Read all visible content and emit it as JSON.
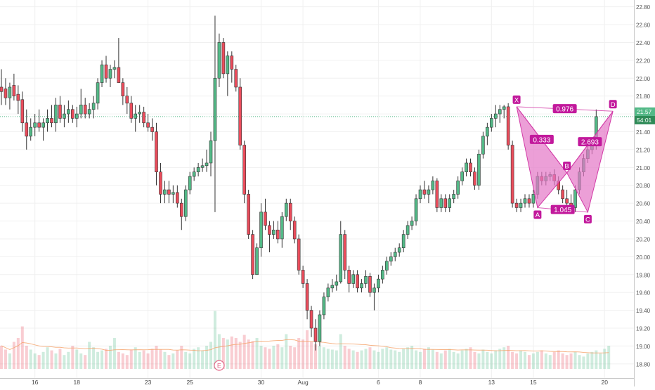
{
  "chart_data": {
    "type": "candlestick",
    "y_axis": {
      "position": "right",
      "min": 18.72,
      "max": 22.86,
      "tick_labels": [
        "22.80",
        "22.60",
        "22.40",
        "22.20",
        "22.00",
        "21.80",
        "21.60",
        "21.40",
        "21.20",
        "21.00",
        "20.80",
        "20.60",
        "20.40",
        "20.20",
        "20.00",
        "19.80",
        "19.60",
        "19.40",
        "19.20",
        "19.00",
        "18.80"
      ]
    },
    "x_axis": {
      "labels": [
        {
          "text": "16",
          "bar": 8
        },
        {
          "text": "18",
          "bar": 18
        },
        {
          "text": "23",
          "bar": 35
        },
        {
          "text": "25",
          "bar": 45
        },
        {
          "text": "30",
          "bar": 62
        },
        {
          "text": "Aug",
          "bar": 72
        },
        {
          "text": "6",
          "bar": 90
        },
        {
          "text": "8",
          "bar": 100
        },
        {
          "text": "13",
          "bar": 117
        },
        {
          "text": "15",
          "bar": 127
        },
        {
          "text": "20",
          "bar": 144
        }
      ]
    },
    "grid": true,
    "colors": {
      "up": "#53b987",
      "down": "#eb4d5c",
      "pattern_fill": "#e476c6",
      "pattern_stroke": "#d23aa6",
      "label_bg": "#c2199c",
      "price_line": "#53b987",
      "volume_ma": "#f5a26a"
    },
    "current_price": {
      "value": 21.57,
      "label": "21.57",
      "countdown": "54:01"
    },
    "pattern": {
      "name": "harmonic XABCD",
      "points": [
        {
          "label": "X",
          "bar": 123,
          "price": 21.68
        },
        {
          "label": "A",
          "bar": 128,
          "price": 20.55
        },
        {
          "label": "B",
          "bar": 135,
          "price": 20.94
        },
        {
          "label": "C",
          "bar": 140,
          "price": 20.5
        },
        {
          "label": "D",
          "bar": 146,
          "price": 21.63
        }
      ],
      "ratios": [
        {
          "text": "0.976",
          "from": 0,
          "to": 4
        },
        {
          "text": "0.333",
          "from": 0,
          "to": 2
        },
        {
          "text": "1.045",
          "from": 1,
          "to": 3
        },
        {
          "text": "2.693",
          "from": 2,
          "to": 4
        }
      ]
    },
    "event_marker": {
      "text": "E",
      "bar": 52
    },
    "ohlc": [
      [
        21.9,
        22.1,
        21.7,
        21.85
      ],
      [
        21.88,
        22.0,
        21.7,
        21.78
      ],
      [
        21.78,
        21.95,
        21.65,
        21.9
      ],
      [
        21.92,
        22.05,
        21.75,
        21.8
      ],
      [
        21.82,
        21.92,
        21.6,
        21.75
      ],
      [
        21.76,
        21.85,
        21.4,
        21.5
      ],
      [
        21.5,
        21.65,
        21.2,
        21.35
      ],
      [
        21.35,
        21.55,
        21.3,
        21.45
      ],
      [
        21.45,
        21.6,
        21.35,
        21.5
      ],
      [
        21.5,
        21.65,
        21.4,
        21.45
      ],
      [
        21.45,
        21.55,
        21.3,
        21.5
      ],
      [
        21.5,
        21.65,
        21.4,
        21.55
      ],
      [
        21.55,
        21.7,
        21.45,
        21.5
      ],
      [
        21.5,
        21.78,
        21.4,
        21.7
      ],
      [
        21.7,
        21.8,
        21.5,
        21.55
      ],
      [
        21.55,
        21.7,
        21.45,
        21.6
      ],
      [
        21.6,
        21.75,
        21.5,
        21.65
      ],
      [
        21.65,
        21.7,
        21.5,
        21.55
      ],
      [
        21.55,
        21.68,
        21.45,
        21.6
      ],
      [
        21.6,
        21.88,
        21.55,
        21.7
      ],
      [
        21.7,
        21.78,
        21.55,
        21.6
      ],
      [
        21.6,
        21.72,
        21.55,
        21.65
      ],
      [
        21.65,
        21.8,
        21.55,
        21.72
      ],
      [
        21.72,
        22.0,
        21.65,
        21.95
      ],
      [
        21.95,
        22.2,
        21.9,
        22.15
      ],
      [
        22.15,
        22.25,
        21.95,
        22.0
      ],
      [
        22.0,
        22.15,
        21.9,
        22.1
      ],
      [
        22.1,
        22.2,
        22.0,
        22.12
      ],
      [
        22.12,
        22.45,
        21.95,
        21.95
      ],
      [
        21.95,
        22.0,
        21.7,
        21.8
      ],
      [
        21.8,
        21.9,
        21.6,
        21.72
      ],
      [
        21.72,
        21.8,
        21.5,
        21.55
      ],
      [
        21.55,
        21.7,
        21.4,
        21.6
      ],
      [
        21.6,
        21.7,
        21.5,
        21.62
      ],
      [
        21.62,
        21.68,
        21.45,
        21.5
      ],
      [
        21.5,
        21.6,
        21.4,
        21.45
      ],
      [
        21.45,
        21.55,
        21.3,
        21.4
      ],
      [
        21.4,
        21.5,
        20.8,
        20.95
      ],
      [
        20.95,
        21.05,
        20.6,
        20.7
      ],
      [
        20.7,
        20.85,
        20.6,
        20.75
      ],
      [
        20.75,
        20.85,
        20.6,
        20.7
      ],
      [
        20.7,
        20.8,
        20.6,
        20.72
      ],
      [
        20.72,
        20.8,
        20.55,
        20.6
      ],
      [
        20.6,
        20.65,
        20.3,
        20.45
      ],
      [
        20.45,
        20.8,
        20.4,
        20.75
      ],
      [
        20.75,
        20.95,
        20.7,
        20.9
      ],
      [
        20.9,
        21.0,
        20.85,
        20.95
      ],
      [
        20.95,
        21.05,
        20.9,
        21.0
      ],
      [
        21.0,
        21.1,
        20.95,
        21.02
      ],
      [
        21.02,
        21.2,
        20.95,
        21.05
      ],
      [
        21.05,
        21.4,
        20.9,
        21.3
      ],
      [
        21.3,
        22.7,
        20.5,
        22.0
      ],
      [
        22.0,
        22.5,
        21.9,
        22.4
      ],
      [
        22.4,
        22.45,
        22.0,
        22.05
      ],
      [
        22.05,
        22.3,
        21.8,
        22.25
      ],
      [
        22.25,
        22.3,
        21.95,
        22.1
      ],
      [
        22.1,
        22.15,
        21.85,
        21.9
      ],
      [
        21.9,
        22.0,
        21.2,
        21.25
      ],
      [
        21.25,
        21.3,
        20.6,
        20.7
      ],
      [
        20.7,
        20.75,
        20.2,
        20.25
      ],
      [
        20.25,
        20.3,
        19.75,
        19.8
      ],
      [
        19.8,
        20.15,
        19.8,
        20.1
      ],
      [
        20.1,
        20.6,
        20.0,
        20.5
      ],
      [
        20.5,
        20.65,
        20.3,
        20.35
      ],
      [
        20.35,
        20.4,
        20.05,
        20.25
      ],
      [
        20.25,
        20.4,
        20.2,
        20.3
      ],
      [
        20.3,
        20.4,
        20.15,
        20.2
      ],
      [
        20.2,
        20.5,
        20.1,
        20.45
      ],
      [
        20.45,
        20.65,
        20.4,
        20.6
      ],
      [
        20.6,
        20.65,
        20.3,
        20.4
      ],
      [
        20.4,
        20.45,
        20.15,
        20.2
      ],
      [
        20.2,
        20.25,
        19.8,
        19.85
      ],
      [
        19.85,
        19.9,
        19.65,
        19.7
      ],
      [
        19.7,
        19.75,
        19.3,
        19.4
      ],
      [
        19.4,
        19.45,
        19.1,
        19.2
      ],
      [
        19.2,
        19.3,
        18.95,
        19.05
      ],
      [
        19.05,
        19.4,
        19.0,
        19.35
      ],
      [
        19.35,
        19.6,
        19.3,
        19.55
      ],
      [
        19.55,
        19.7,
        19.5,
        19.65
      ],
      [
        19.65,
        19.75,
        19.6,
        19.68
      ],
      [
        19.68,
        19.8,
        19.62,
        19.72
      ],
      [
        19.72,
        20.4,
        19.7,
        20.25
      ],
      [
        20.25,
        20.3,
        19.75,
        19.85
      ],
      [
        19.85,
        19.9,
        19.6,
        19.7
      ],
      [
        19.7,
        19.85,
        19.65,
        19.8
      ],
      [
        19.8,
        19.85,
        19.6,
        19.65
      ],
      [
        19.65,
        19.75,
        19.6,
        19.7
      ],
      [
        19.7,
        19.85,
        19.65,
        19.78
      ],
      [
        19.78,
        19.82,
        19.55,
        19.6
      ],
      [
        19.6,
        19.7,
        19.4,
        19.65
      ],
      [
        19.65,
        19.8,
        19.6,
        19.75
      ],
      [
        19.75,
        19.9,
        19.7,
        19.85
      ],
      [
        19.85,
        20.0,
        19.8,
        19.95
      ],
      [
        19.95,
        20.05,
        19.9,
        20.0
      ],
      [
        20.0,
        20.1,
        19.95,
        20.05
      ],
      [
        20.05,
        20.15,
        20.0,
        20.1
      ],
      [
        20.1,
        20.3,
        20.05,
        20.25
      ],
      [
        20.25,
        20.4,
        20.2,
        20.35
      ],
      [
        20.35,
        20.45,
        20.3,
        20.4
      ],
      [
        20.4,
        20.7,
        20.35,
        20.65
      ],
      [
        20.65,
        20.8,
        20.6,
        20.75
      ],
      [
        20.75,
        20.85,
        20.65,
        20.7
      ],
      [
        20.7,
        20.8,
        20.6,
        20.75
      ],
      [
        20.75,
        20.9,
        20.7,
        20.85
      ],
      [
        20.85,
        20.88,
        20.5,
        20.55
      ],
      [
        20.55,
        20.7,
        20.5,
        20.65
      ],
      [
        20.65,
        20.7,
        20.5,
        20.55
      ],
      [
        20.55,
        20.7,
        20.5,
        20.65
      ],
      [
        20.65,
        20.75,
        20.6,
        20.7
      ],
      [
        20.7,
        20.9,
        20.65,
        20.85
      ],
      [
        20.85,
        21.0,
        20.8,
        20.95
      ],
      [
        20.95,
        21.1,
        20.9,
        21.05
      ],
      [
        21.05,
        21.1,
        20.9,
        20.95
      ],
      [
        20.95,
        21.0,
        20.75,
        20.8
      ],
      [
        20.8,
        21.2,
        20.75,
        21.15
      ],
      [
        21.15,
        21.4,
        21.1,
        21.35
      ],
      [
        21.35,
        21.5,
        21.25,
        21.45
      ],
      [
        21.45,
        21.6,
        21.4,
        21.55
      ],
      [
        21.55,
        21.7,
        21.45,
        21.6
      ],
      [
        21.6,
        21.7,
        21.5,
        21.65
      ],
      [
        21.65,
        21.7,
        21.55,
        21.68
      ],
      [
        21.68,
        21.72,
        21.2,
        21.25
      ],
      [
        21.25,
        21.3,
        20.55,
        20.6
      ],
      [
        20.6,
        20.65,
        20.5,
        20.55
      ],
      [
        20.55,
        20.65,
        20.5,
        20.6
      ],
      [
        20.6,
        20.7,
        20.55,
        20.65
      ],
      [
        20.65,
        20.7,
        20.55,
        20.6
      ],
      [
        20.6,
        20.75,
        20.55,
        20.7
      ],
      [
        20.7,
        20.95,
        20.65,
        20.9
      ],
      [
        20.9,
        20.95,
        20.8,
        20.85
      ],
      [
        20.85,
        20.95,
        20.8,
        20.9
      ],
      [
        20.9,
        20.95,
        20.85,
        20.92
      ],
      [
        20.92,
        20.98,
        20.8,
        20.85
      ],
      [
        20.85,
        20.9,
        20.7,
        20.75
      ],
      [
        20.75,
        20.8,
        20.6,
        20.65
      ],
      [
        20.65,
        20.75,
        20.55,
        20.6
      ],
      [
        20.6,
        20.7,
        20.5,
        20.55
      ],
      [
        20.55,
        20.8,
        20.5,
        20.75
      ],
      [
        20.75,
        21.0,
        20.7,
        20.95
      ],
      [
        20.95,
        21.15,
        20.9,
        21.1
      ],
      [
        21.1,
        21.25,
        21.05,
        21.2
      ],
      [
        21.2,
        21.3,
        21.15,
        21.25
      ],
      [
        21.25,
        21.65,
        21.2,
        21.57
      ]
    ],
    "volume": [
      0.3,
      0.25,
      0.2,
      0.35,
      0.4,
      0.55,
      0.3,
      0.25,
      0.2,
      0.18,
      0.22,
      0.28,
      0.24,
      0.2,
      0.26,
      0.18,
      0.22,
      0.3,
      0.25,
      0.2,
      0.18,
      0.35,
      0.28,
      0.22,
      0.24,
      0.26,
      0.3,
      0.4,
      0.22,
      0.2,
      0.18,
      0.25,
      0.28,
      0.22,
      0.24,
      0.2,
      0.26,
      0.3,
      0.25,
      0.22,
      0.18,
      0.2,
      0.24,
      0.3,
      0.22,
      0.2,
      0.26,
      0.28,
      0.24,
      0.3,
      0.35,
      0.75,
      0.45,
      0.4,
      0.38,
      0.42,
      0.4,
      0.35,
      0.44,
      0.38,
      0.36,
      0.4,
      0.3,
      0.28,
      0.26,
      0.3,
      0.32,
      0.28,
      0.45,
      0.3,
      0.28,
      0.4,
      0.38,
      0.5,
      0.35,
      0.32,
      0.3,
      0.28,
      0.26,
      0.25,
      0.24,
      0.45,
      0.3,
      0.26,
      0.24,
      0.22,
      0.24,
      0.26,
      0.28,
      0.24,
      0.22,
      0.26,
      0.28,
      0.25,
      0.24,
      0.22,
      0.26,
      0.28,
      0.3,
      0.24,
      0.22,
      0.26,
      0.28,
      0.25,
      0.22,
      0.2,
      0.24,
      0.26,
      0.22,
      0.2,
      0.24,
      0.26,
      0.28,
      0.22,
      0.2,
      0.25,
      0.22,
      0.2,
      0.24,
      0.26,
      0.28,
      0.3,
      0.22,
      0.2,
      0.24,
      0.22,
      0.18,
      0.2,
      0.22,
      0.24,
      0.2,
      0.18,
      0.22,
      0.24,
      0.2,
      0.18,
      0.2,
      0.22,
      0.18,
      0.16,
      0.2,
      0.22,
      0.24,
      0.2,
      0.26,
      0.3
    ]
  }
}
